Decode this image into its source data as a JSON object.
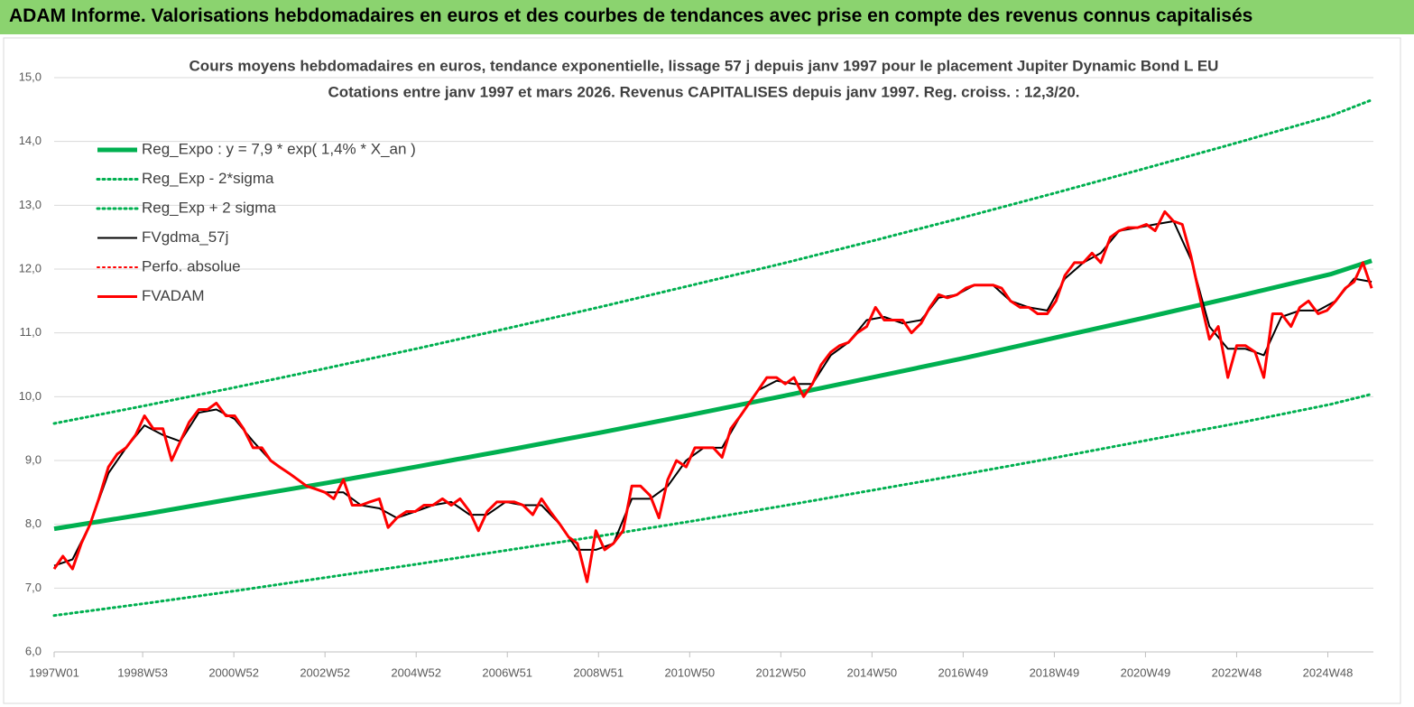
{
  "header": {
    "title": "ADAM Informe. Valorisations hebdomadaires en euros et des courbes de tendances avec prise en compte des revenus connus capitalisés"
  },
  "chart_data": {
    "type": "line",
    "title": "Cours moyens hebdomadaires en euros, tendance exponentielle, lissage 57 j depuis janv 1997  pour le placement Jupiter Dynamic Bond L EU",
    "subtitle": "Cotations entre janv 1997 et mars 2026. Revenus CAPITALISES  depuis janv 1997. Reg. croiss. : 12,3/20.",
    "xlim": [
      0,
      1505
    ],
    "xticks": [
      {
        "value": 0,
        "label": "1997W01"
      },
      {
        "value": 101,
        "label": "1998W53"
      },
      {
        "value": 205,
        "label": "2000W52"
      },
      {
        "value": 309,
        "label": "2002W52"
      },
      {
        "value": 413,
        "label": "2004W52"
      },
      {
        "value": 517,
        "label": "2006W51"
      },
      {
        "value": 621,
        "label": "2008W51"
      },
      {
        "value": 725,
        "label": "2010W50"
      },
      {
        "value": 829,
        "label": "2012W50"
      },
      {
        "value": 933,
        "label": "2014W50"
      },
      {
        "value": 1037,
        "label": "2016W49"
      },
      {
        "value": 1141,
        "label": "2018W49"
      },
      {
        "value": 1245,
        "label": "2020W49"
      },
      {
        "value": 1349,
        "label": "2022W48"
      },
      {
        "value": 1453,
        "label": "2024W48"
      }
    ],
    "ylim": [
      6,
      15
    ],
    "yticks": [
      {
        "value": 6,
        "label": "6,0"
      },
      {
        "value": 7,
        "label": "7,0"
      },
      {
        "value": 8,
        "label": "8,0"
      },
      {
        "value": 9,
        "label": "9,0"
      },
      {
        "value": 10,
        "label": "10,0"
      },
      {
        "value": 11,
        "label": "11,0"
      },
      {
        "value": 12,
        "label": "12,0"
      },
      {
        "value": 13,
        "label": "13,0"
      },
      {
        "value": 14,
        "label": "14,0"
      },
      {
        "value": 15,
        "label": "15,0"
      }
    ],
    "grid": true,
    "legend": "upper left",
    "series": [
      {
        "name": "Reg_Expo : y = 7,9 * exp( 1,4% *  X_an )",
        "color": "#00b050",
        "style": "solid",
        "width": 5,
        "x": [
          0,
          104,
          208,
          312,
          416,
          520,
          624,
          728,
          832,
          936,
          1040,
          1144,
          1248,
          1352,
          1456,
          1503
        ],
        "values": [
          7.93,
          8.16,
          8.41,
          8.65,
          8.91,
          9.17,
          9.44,
          9.72,
          10.01,
          10.31,
          10.61,
          10.93,
          11.25,
          11.58,
          11.92,
          12.13
        ]
      },
      {
        "name": "Reg_Exp - 2*sigma",
        "color": "#00b050",
        "style": "dotted",
        "width": 3,
        "x": [
          0,
          104,
          208,
          312,
          416,
          520,
          624,
          728,
          832,
          936,
          1040,
          1144,
          1248,
          1352,
          1456,
          1503
        ],
        "values": [
          6.57,
          6.76,
          6.96,
          7.17,
          7.38,
          7.6,
          7.82,
          8.05,
          8.29,
          8.54,
          8.79,
          9.05,
          9.32,
          9.59,
          9.88,
          10.04
        ]
      },
      {
        "name": "Reg_Exp + 2 sigma",
        "color": "#00b050",
        "style": "dotted",
        "width": 3,
        "x": [
          0,
          104,
          208,
          312,
          416,
          520,
          624,
          728,
          832,
          936,
          1040,
          1144,
          1248,
          1352,
          1456,
          1503
        ],
        "values": [
          9.58,
          9.86,
          10.15,
          10.45,
          10.76,
          11.08,
          11.41,
          11.75,
          12.09,
          12.45,
          12.82,
          13.2,
          13.59,
          13.99,
          14.4,
          14.65
        ]
      },
      {
        "name": "FVgdma_57j",
        "color": "#000000",
        "style": "solid",
        "width": 2,
        "x": [
          0,
          21,
          41,
          62,
          82,
          103,
          124,
          144,
          165,
          185,
          206,
          227,
          247,
          268,
          288,
          309,
          330,
          350,
          371,
          391,
          412,
          432,
          453,
          474,
          494,
          515,
          535,
          556,
          577,
          597,
          618,
          638,
          659,
          680,
          700,
          721,
          741,
          762,
          783,
          803,
          824,
          844,
          865,
          886,
          906,
          927,
          947,
          968,
          989,
          1009,
          1030,
          1050,
          1071,
          1091,
          1112,
          1133,
          1153,
          1174,
          1194,
          1215,
          1236,
          1256,
          1277,
          1297,
          1318,
          1339,
          1359,
          1380,
          1400,
          1421,
          1442,
          1462,
          1483,
          1503
        ],
        "values": [
          7.35,
          7.45,
          8.0,
          8.8,
          9.2,
          9.55,
          9.4,
          9.3,
          9.75,
          9.8,
          9.65,
          9.3,
          9.0,
          8.8,
          8.6,
          8.5,
          8.5,
          8.3,
          8.25,
          8.1,
          8.2,
          8.3,
          8.35,
          8.15,
          8.15,
          8.35,
          8.3,
          8.3,
          8.0,
          7.6,
          7.6,
          7.7,
          8.4,
          8.4,
          8.6,
          9.0,
          9.2,
          9.2,
          9.7,
          10.1,
          10.25,
          10.2,
          10.2,
          10.65,
          10.85,
          11.2,
          11.25,
          11.15,
          11.2,
          11.55,
          11.6,
          11.75,
          11.75,
          11.5,
          11.4,
          11.35,
          11.85,
          12.1,
          12.25,
          12.6,
          12.65,
          12.7,
          12.75,
          12.15,
          11.1,
          10.75,
          10.75,
          10.65,
          11.25,
          11.35,
          11.35,
          11.5,
          11.85,
          11.8
        ]
      },
      {
        "name": "Perfo. absolue",
        "color": "#ff0000",
        "style": "dotted",
        "width": 2
      },
      {
        "name": "FVADAM",
        "color": "#ff0000",
        "style": "solid",
        "width": 3,
        "x": [
          0,
          10,
          21,
          31,
          41,
          51,
          62,
          72,
          82,
          93,
          103,
          113,
          124,
          134,
          144,
          154,
          165,
          175,
          185,
          196,
          206,
          216,
          227,
          237,
          247,
          257,
          268,
          278,
          288,
          299,
          309,
          319,
          330,
          340,
          350,
          360,
          371,
          381,
          391,
          402,
          412,
          422,
          432,
          443,
          453,
          463,
          474,
          484,
          494,
          505,
          515,
          525,
          535,
          546,
          556,
          566,
          577,
          587,
          597,
          608,
          618,
          628,
          638,
          649,
          659,
          669,
          680,
          690,
          700,
          710,
          721,
          731,
          741,
          752,
          762,
          772,
          783,
          793,
          803,
          813,
          824,
          834,
          844,
          855,
          865,
          875,
          886,
          896,
          906,
          916,
          927,
          937,
          947,
          958,
          968,
          978,
          989,
          999,
          1009,
          1019,
          1030,
          1040,
          1050,
          1061,
          1071,
          1081,
          1091,
          1102,
          1112,
          1122,
          1133,
          1143,
          1153,
          1164,
          1174,
          1184,
          1194,
          1205,
          1215,
          1225,
          1236,
          1246,
          1256,
          1267,
          1277,
          1287,
          1297,
          1308,
          1318,
          1328,
          1339,
          1349,
          1359,
          1370,
          1380,
          1390,
          1400,
          1411,
          1421,
          1431,
          1442,
          1452,
          1462,
          1473,
          1483,
          1493,
          1503
        ],
        "values": [
          7.3,
          7.5,
          7.3,
          7.7,
          8.0,
          8.4,
          8.9,
          9.1,
          9.2,
          9.4,
          9.7,
          9.5,
          9.5,
          9.0,
          9.3,
          9.6,
          9.8,
          9.8,
          9.9,
          9.7,
          9.7,
          9.5,
          9.2,
          9.2,
          9.0,
          8.9,
          8.8,
          8.7,
          8.6,
          8.55,
          8.5,
          8.4,
          8.7,
          8.3,
          8.3,
          8.35,
          8.4,
          7.95,
          8.1,
          8.2,
          8.2,
          8.3,
          8.3,
          8.4,
          8.3,
          8.4,
          8.2,
          7.9,
          8.2,
          8.35,
          8.35,
          8.35,
          8.3,
          8.15,
          8.4,
          8.2,
          8.0,
          7.8,
          7.7,
          7.1,
          7.9,
          7.6,
          7.7,
          7.9,
          8.6,
          8.6,
          8.45,
          8.1,
          8.7,
          9.0,
          8.9,
          9.2,
          9.2,
          9.2,
          9.05,
          9.5,
          9.7,
          9.9,
          10.1,
          10.3,
          10.3,
          10.2,
          10.3,
          10.0,
          10.2,
          10.5,
          10.7,
          10.8,
          10.85,
          11.0,
          11.1,
          11.4,
          11.2,
          11.2,
          11.2,
          11.0,
          11.15,
          11.4,
          11.6,
          11.55,
          11.6,
          11.7,
          11.75,
          11.75,
          11.75,
          11.7,
          11.5,
          11.4,
          11.4,
          11.3,
          11.3,
          11.5,
          11.9,
          12.1,
          12.1,
          12.25,
          12.1,
          12.5,
          12.6,
          12.65,
          12.65,
          12.7,
          12.6,
          12.9,
          12.75,
          12.7,
          12.2,
          11.5,
          10.9,
          11.1,
          10.3,
          10.8,
          10.8,
          10.7,
          10.3,
          11.3,
          11.3,
          11.1,
          11.4,
          11.5,
          11.3,
          11.35,
          11.5,
          11.7,
          11.8,
          12.1,
          11.7
        ]
      }
    ]
  }
}
